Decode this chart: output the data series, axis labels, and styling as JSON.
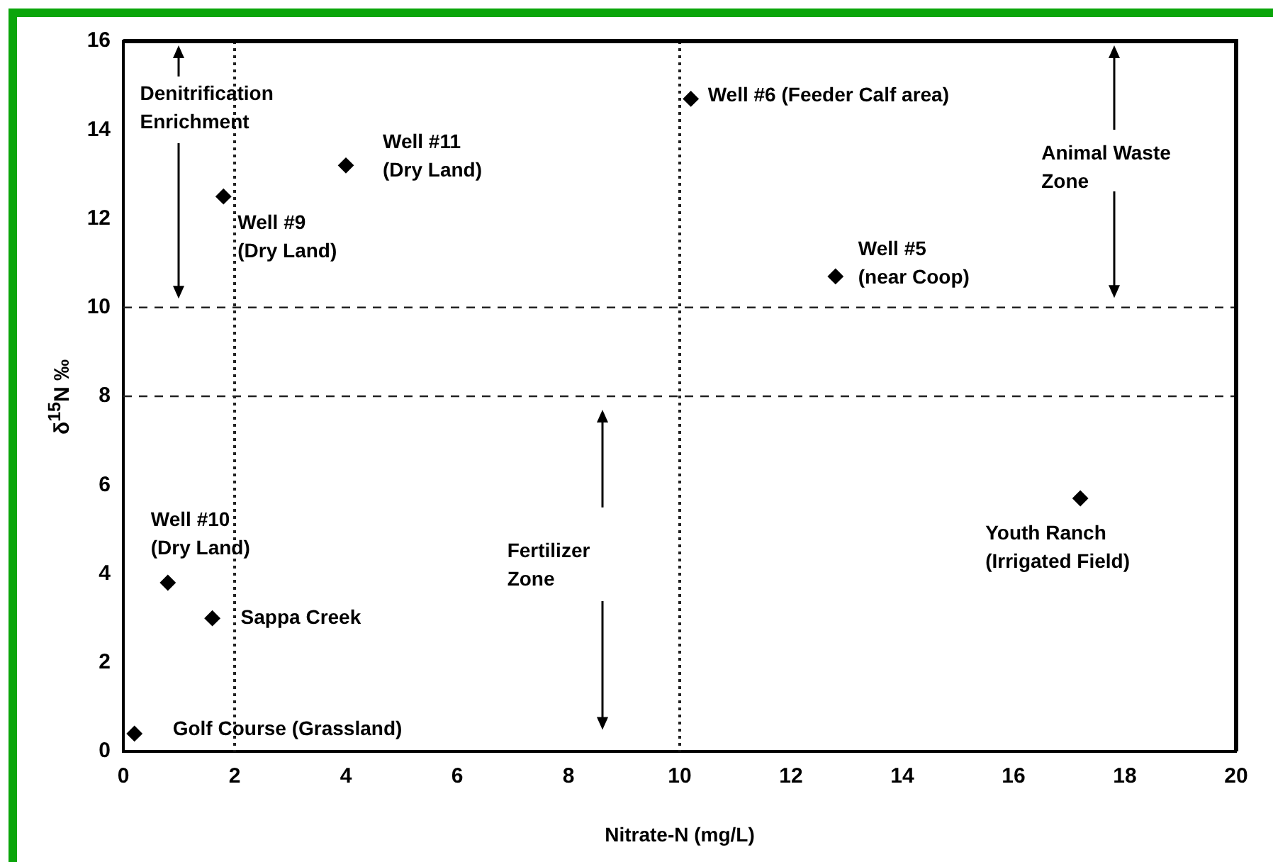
{
  "chart_data": {
    "type": "scatter",
    "xlabel": "Nitrate-N (mg/L)",
    "ylabel": "δ$^{15}$N ‰",
    "x": [
      0.2,
      0.8,
      1.6,
      1.8,
      4.0,
      10.2,
      12.8,
      17.2
    ],
    "series": [
      {
        "color": "#000000",
        "values": [
          0.4,
          3.8,
          3.0,
          12.5,
          13.2,
          14.7,
          10.7,
          5.7
        ]
      }
    ],
    "xlim": [
      0,
      20
    ],
    "xticks": [
      0,
      2,
      4,
      6,
      8,
      10,
      12,
      14,
      16,
      18,
      20
    ],
    "ylim": [
      0,
      16
    ],
    "yticks": [
      0,
      2,
      4,
      6,
      8,
      10,
      12,
      14,
      16
    ],
    "grid": false,
    "legend": false,
    "marker": "diamond",
    "ref_lines": [
      {
        "axis": "y",
        "value": 10,
        "line_style": "dashed"
      },
      {
        "axis": "y",
        "value": 8,
        "line_style": "dashed"
      },
      {
        "axis": "x",
        "value": 2,
        "line_style": "dotted"
      },
      {
        "axis": "x",
        "value": 10,
        "line_style": "dotted"
      }
    ],
    "annotations": [
      {
        "text": "Golf Course (Grassland)",
        "x": 0.2,
        "y": 0.4
      },
      {
        "text": "Sappa Creek",
        "x": 1.6,
        "y": 3.0
      },
      {
        "text": "Well #10\n(Dry Land)",
        "x": 0.8,
        "y": 3.8
      },
      {
        "text": "Well #9\n(Dry Land)",
        "x": 1.8,
        "y": 12.5
      },
      {
        "text": "Well #11\n(Dry Land)",
        "x": 4.0,
        "y": 13.2
      },
      {
        "text": "Well #6 (Feeder Calf area)",
        "x": 10.2,
        "y": 14.7
      },
      {
        "text": "Well #5\n(near Coop)",
        "x": 12.8,
        "y": 10.7
      },
      {
        "text": "Youth Ranch\n(Irrigated Field)",
        "x": 17.2,
        "y": 5.7
      },
      "Denitrification\nEnrichment",
      "Animal Waste\nZone",
      "Fertilizer\nZone"
    ]
  }
}
